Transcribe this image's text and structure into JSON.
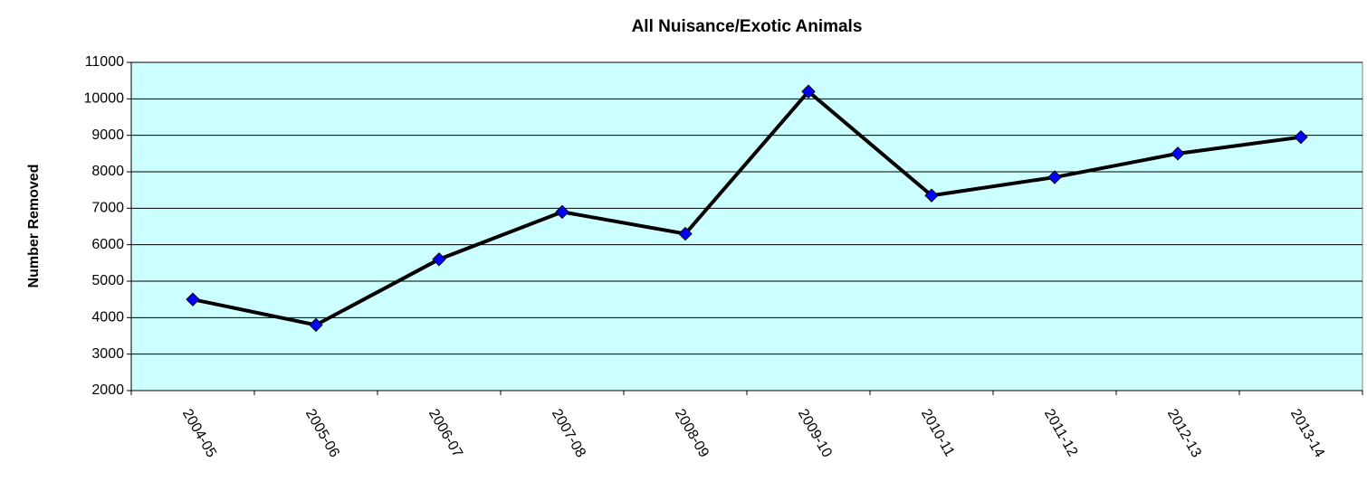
{
  "chart_data": {
    "type": "line",
    "title": "All Nuisance/Exotic Animals",
    "y_label": "Number Removed",
    "categories": [
      "2004-05",
      "2005-06",
      "2006-07",
      "2007-08",
      "2008-09",
      "2009-10",
      "2010-11",
      "2011-12",
      "2012-13",
      "2013-14"
    ],
    "series": [
      {
        "name": "All Nuisance/Exotic Animals",
        "color": "#000000",
        "marker_color": "#0000ff",
        "values": [
          4500,
          3800,
          5600,
          6900,
          6300,
          10200,
          7350,
          7850,
          8500,
          8950
        ]
      }
    ],
    "ylim": [
      2000,
      11000
    ],
    "yticks": [
      2000,
      3000,
      4000,
      5000,
      6000,
      7000,
      8000,
      9000,
      10000,
      11000
    ],
    "grid": true,
    "plot_background": "#ccffff"
  }
}
